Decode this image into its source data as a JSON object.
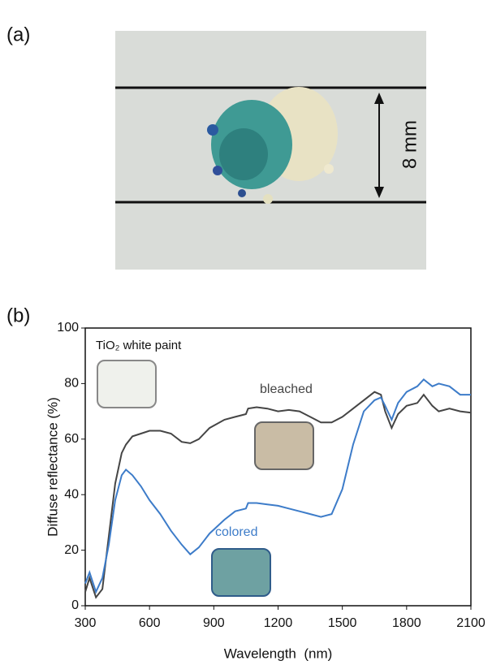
{
  "panel_a": {
    "label": "(a)",
    "scale_label": "8 mm"
  },
  "panel_b_label": "(b)",
  "chart_data": {
    "type": "line",
    "xlabel": "Wavelength  (nm)",
    "ylabel": "Diffuse reflectance (%)",
    "annotation": "TiO₂ white paint",
    "x": [
      300,
      320,
      350,
      380,
      410,
      440,
      470,
      490,
      520,
      560,
      600,
      650,
      700,
      750,
      790,
      830,
      880,
      950,
      1000,
      1050,
      1060,
      1100,
      1150,
      1200,
      1250,
      1300,
      1350,
      1400,
      1450,
      1500,
      1550,
      1600,
      1650,
      1680,
      1700,
      1730,
      1760,
      1800,
      1850,
      1880,
      1920,
      1950,
      2000,
      2050,
      2100
    ],
    "series": [
      {
        "name": "bleached",
        "color": "#454545",
        "values": [
          5,
          10,
          3,
          6,
          25,
          44,
          55,
          58,
          61,
          62,
          63,
          63,
          62,
          59,
          58.5,
          60,
          64,
          67,
          68,
          69,
          71,
          71.5,
          71,
          70,
          70.5,
          70,
          68,
          66,
          66,
          68,
          71,
          74,
          77,
          76,
          70,
          64,
          69,
          72,
          73,
          76,
          72,
          70,
          71,
          70,
          69.5
        ]
      },
      {
        "name": "colored",
        "color": "#3d7cc9",
        "values": [
          8,
          12,
          5,
          10,
          22,
          38,
          47,
          49,
          47,
          43,
          38,
          33,
          27,
          22,
          18.5,
          21,
          26,
          31,
          34,
          35,
          37,
          37,
          36.5,
          36,
          35,
          34,
          33,
          32,
          33,
          42,
          58,
          70,
          74,
          75,
          72,
          67,
          73,
          77,
          79,
          81.5,
          79,
          80,
          79,
          76,
          76
        ]
      }
    ],
    "xlim": [
      300,
      2100
    ],
    "xticks": [
      300,
      600,
      900,
      1200,
      1500,
      1800,
      2100
    ],
    "ylim": [
      0,
      100
    ],
    "yticks": [
      0,
      20,
      40,
      60,
      80,
      100
    ]
  }
}
